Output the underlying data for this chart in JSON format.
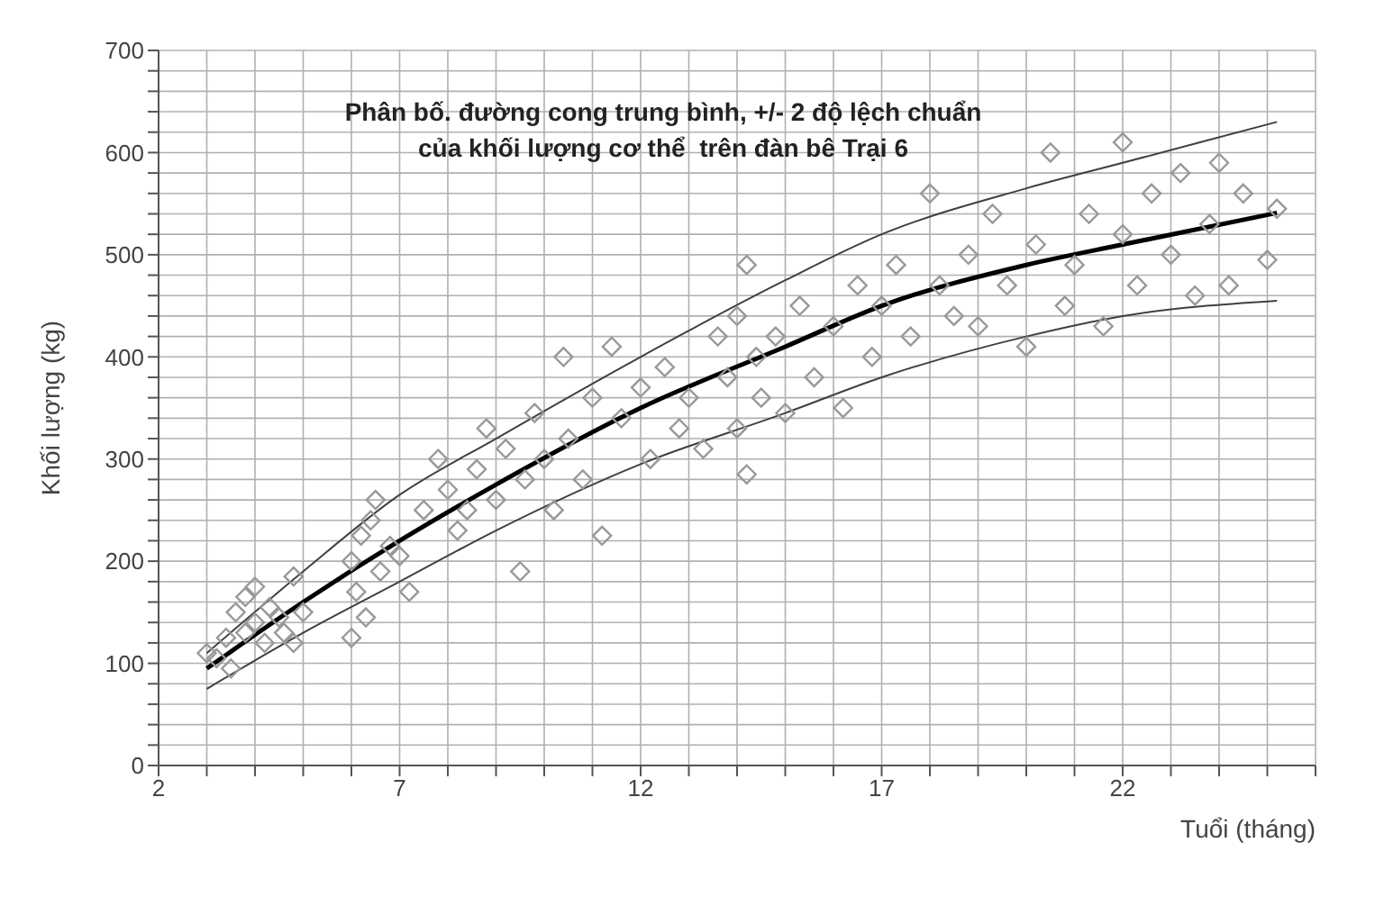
{
  "chart_data": {
    "type": "scatter",
    "title": "Phân bố. đường cong trung bình, +/- 2 độ lệch chuẩn\ncủa khối lượng cơ thể  trên đàn bê Trại 6",
    "xlabel": "Tuổi (tháng)",
    "ylabel": "Khối lượng (kg)",
    "xlim": [
      2,
      26
    ],
    "ylim": [
      0,
      700
    ],
    "xticks": [
      2,
      {
        "value": 3,
        "label": null
      },
      {
        "value": 4,
        "label": null
      },
      {
        "value": 5,
        "label": null
      },
      {
        "value": 6,
        "label": null
      },
      7,
      {
        "value": 8,
        "label": null
      },
      {
        "value": 9,
        "label": null
      },
      {
        "value": 10,
        "label": null
      },
      {
        "value": 11,
        "label": null
      },
      12,
      {
        "value": 13,
        "label": null
      },
      {
        "value": 14,
        "label": null
      },
      {
        "value": 15,
        "label": null
      },
      {
        "value": 16,
        "label": null
      },
      17,
      {
        "value": 18,
        "label": null
      },
      {
        "value": 19,
        "label": null
      },
      {
        "value": 20,
        "label": null
      },
      {
        "value": 21,
        "label": null
      },
      22,
      {
        "value": 23,
        "label": null
      },
      {
        "value": 24,
        "label": null
      },
      {
        "value": 25,
        "label": null
      },
      {
        "value": 26,
        "label": null
      }
    ],
    "yticks": [
      0,
      {
        "value": 20,
        "label": null
      },
      {
        "value": 40,
        "label": null
      },
      {
        "value": 60,
        "label": null
      },
      {
        "value": 80,
        "label": null
      },
      100,
      {
        "value": 120,
        "label": null
      },
      {
        "value": 140,
        "label": null
      },
      {
        "value": 160,
        "label": null
      },
      {
        "value": 180,
        "label": null
      },
      200,
      {
        "value": 220,
        "label": null
      },
      {
        "value": 240,
        "label": null
      },
      {
        "value": 260,
        "label": null
      },
      {
        "value": 280,
        "label": null
      },
      300,
      {
        "value": 320,
        "label": null
      },
      {
        "value": 340,
        "label": null
      },
      {
        "value": 360,
        "label": null
      },
      {
        "value": 380,
        "label": null
      },
      400,
      {
        "value": 420,
        "label": null
      },
      {
        "value": 440,
        "label": null
      },
      {
        "value": 460,
        "label": null
      },
      {
        "value": 480,
        "label": null
      },
      500,
      {
        "value": 520,
        "label": null
      },
      {
        "value": 540,
        "label": null
      },
      {
        "value": 560,
        "label": null
      },
      {
        "value": 580,
        "label": null
      },
      600,
      {
        "value": 620,
        "label": null
      },
      {
        "value": 640,
        "label": null
      },
      {
        "value": 660,
        "label": null
      },
      {
        "value": 680,
        "label": null
      },
      700
    ],
    "grid": true,
    "legend": false,
    "series": [
      {
        "type": "scatter",
        "marker": "diamond",
        "color": "#999999",
        "x": [
          3.0,
          3.2,
          3.4,
          3.5,
          3.6,
          3.8,
          3.8,
          4.0,
          4.0,
          4.2,
          4.3,
          4.5,
          4.6,
          4.8,
          4.8,
          5.0,
          6.0,
          6.0,
          6.1,
          6.2,
          6.3,
          6.4,
          6.5,
          6.6,
          6.8,
          7.0,
          7.2,
          7.5,
          7.8,
          8.0,
          8.2,
          8.4,
          8.6,
          8.8,
          9.0,
          9.2,
          9.5,
          9.6,
          9.8,
          10.0,
          10.2,
          10.4,
          10.5,
          10.8,
          11.0,
          11.2,
          11.4,
          11.6,
          12.0,
          12.2,
          12.5,
          12.8,
          13.0,
          13.3,
          13.6,
          13.8,
          14.0,
          14.0,
          14.2,
          14.2,
          14.4,
          14.5,
          14.8,
          15.0,
          15.3,
          15.6,
          16.0,
          16.2,
          16.5,
          16.8,
          17.0,
          17.3,
          17.6,
          18.0,
          18.2,
          18.5,
          18.8,
          19.0,
          19.3,
          19.6,
          20.0,
          20.2,
          20.5,
          20.8,
          21.0,
          21.3,
          21.6,
          22.0,
          22.0,
          22.3,
          22.6,
          23.0,
          23.2,
          23.5,
          23.8,
          24.0,
          24.2,
          24.5,
          25.0,
          25.2
        ],
        "values": [
          110,
          105,
          125,
          95,
          150,
          165,
          130,
          175,
          140,
          120,
          155,
          145,
          130,
          185,
          120,
          150,
          200,
          125,
          170,
          225,
          145,
          240,
          260,
          190,
          215,
          205,
          170,
          250,
          300,
          270,
          230,
          250,
          290,
          330,
          260,
          310,
          190,
          280,
          345,
          300,
          250,
          400,
          320,
          280,
          360,
          225,
          410,
          340,
          370,
          300,
          390,
          330,
          360,
          310,
          420,
          380,
          440,
          330,
          490,
          285,
          400,
          360,
          420,
          345,
          450,
          380,
          430,
          350,
          470,
          400,
          450,
          490,
          420,
          560,
          470,
          440,
          500,
          430,
          540,
          470,
          410,
          510,
          600,
          450,
          490,
          540,
          430,
          610,
          520,
          470,
          560,
          500,
          580,
          460,
          530,
          590,
          470,
          560,
          495,
          545
        ]
      },
      {
        "type": "line",
        "marker": "none",
        "line_style": "solid",
        "color": "#000000",
        "x": [
          3,
          5,
          7,
          9,
          12,
          15,
          17,
          20,
          22,
          25.2
        ],
        "values": [
          95,
          160,
          220,
          275,
          350,
          410,
          450,
          490,
          510,
          541
        ]
      },
      {
        "type": "line",
        "marker": "none",
        "line_style": "solid",
        "color": "#404040",
        "x": [
          3,
          5,
          7,
          9,
          12,
          15,
          17,
          20,
          22,
          25.2
        ],
        "values": [
          110,
          190,
          265,
          320,
          400,
          475,
          520,
          565,
          590,
          630
        ]
      },
      {
        "type": "line",
        "marker": "none",
        "line_style": "solid",
        "color": "#404040",
        "x": [
          3,
          5,
          7,
          9,
          12,
          15,
          17,
          20,
          22,
          25.2
        ],
        "values": [
          75,
          130,
          180,
          230,
          295,
          345,
          380,
          420,
          440,
          455
        ]
      }
    ]
  }
}
